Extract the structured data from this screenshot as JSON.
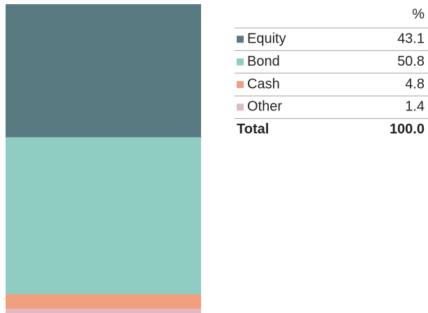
{
  "chart_data": {
    "type": "stacked-bar",
    "column_header": "%",
    "categories": [
      "Equity",
      "Bond",
      "Cash",
      "Other"
    ],
    "values": [
      43.1,
      50.8,
      4.8,
      1.4
    ],
    "colors": [
      "#587a80",
      "#8fcdc3",
      "#f0a07e",
      "#dfbac3"
    ],
    "ylim": [
      0,
      100
    ],
    "total_label": "Total",
    "total": 100,
    "total_value_label": "100.0"
  }
}
